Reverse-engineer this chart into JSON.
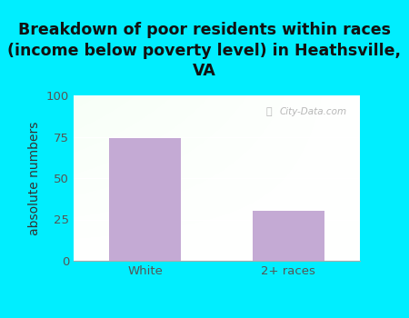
{
  "title": "Breakdown of poor residents within races\n(income below poverty level) in Heathsville,\nVA",
  "categories": [
    "White",
    "2+ races"
  ],
  "values": [
    74,
    30
  ],
  "bar_color": "#c4aad4",
  "ylabel": "absolute numbers",
  "ylim": [
    0,
    100
  ],
  "yticks": [
    0,
    25,
    50,
    75,
    100
  ],
  "background_color": "#00eeff",
  "title_fontsize": 12.5,
  "label_fontsize": 10,
  "tick_fontsize": 9.5,
  "watermark": "City-Data.com"
}
